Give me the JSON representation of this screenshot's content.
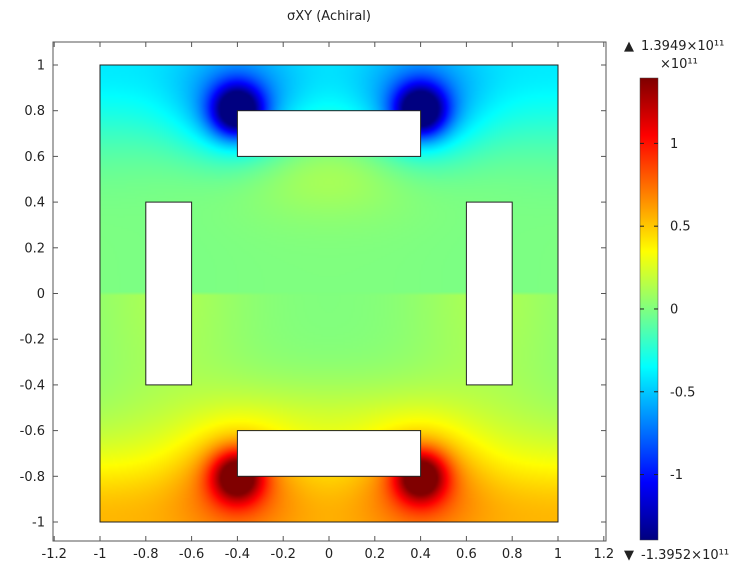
{
  "chart_data": {
    "type": "heatmap",
    "title": "σXY (Achiral)",
    "xlabel": "",
    "ylabel": "",
    "xlim": [
      -1.2,
      1.2
    ],
    "ylim": [
      -1.1,
      1.1
    ],
    "x_ticks": [
      -1.2,
      -1,
      -0.8,
      -0.6,
      -0.4,
      -0.2,
      0,
      0.2,
      0.4,
      0.6,
      0.8,
      1,
      1.2
    ],
    "y_ticks": [
      1,
      0.8,
      0.6,
      0.4,
      0.2,
      0,
      -0.2,
      -0.4,
      -0.6,
      -0.8,
      -1
    ],
    "x_tick_labels": [
      "-1.2",
      "-1",
      "-0.8",
      "-0.6",
      "-0.4",
      "-0.2",
      "0",
      "0.2",
      "0.4",
      "0.6",
      "0.8",
      "1",
      "1.2"
    ],
    "y_tick_labels": [
      "1",
      "0.8",
      "0.6",
      "0.4",
      "0.2",
      "0",
      "-0.2",
      "-0.4",
      "-0.6",
      "-0.8",
      "-1"
    ],
    "domain": {
      "x": [
        -1,
        1
      ],
      "y": [
        -1,
        1
      ]
    },
    "holes": [
      {
        "x": [
          -0.4,
          0.4
        ],
        "y": [
          0.6,
          0.8
        ]
      },
      {
        "x": [
          -0.4,
          0.4
        ],
        "y": [
          -0.8,
          -0.6
        ]
      },
      {
        "x": [
          -0.8,
          -0.6
        ],
        "y": [
          -0.4,
          0.4
        ]
      },
      {
        "x": [
          0.6,
          0.8
        ],
        "y": [
          -0.4,
          0.4
        ]
      }
    ],
    "colorbar": {
      "colormap": "jet",
      "scale_label": "×10¹¹",
      "max_label": "1.3949×10¹¹",
      "min_label": "-1.3952×10¹¹",
      "max_value": 1.3949,
      "min_value": -1.3952,
      "ticks": [
        1,
        0.5,
        0,
        -0.5,
        -1
      ],
      "tick_labels": [
        "1",
        "0.5",
        "0",
        "-0.5",
        "-1"
      ]
    },
    "field_description": {
      "background_level": 0.0,
      "top_edge_level": -0.5,
      "bottom_edge_level": 0.6,
      "corner_concentrations": [
        {
          "x": -0.4,
          "y": 0.8,
          "value": -1.2
        },
        {
          "x": 0.4,
          "y": 0.8,
          "value": -1.2
        },
        {
          "x": -0.4,
          "y": -0.8,
          "value": 1.0
        },
        {
          "x": 0.4,
          "y": -0.8,
          "value": 1.0
        }
      ]
    }
  }
}
